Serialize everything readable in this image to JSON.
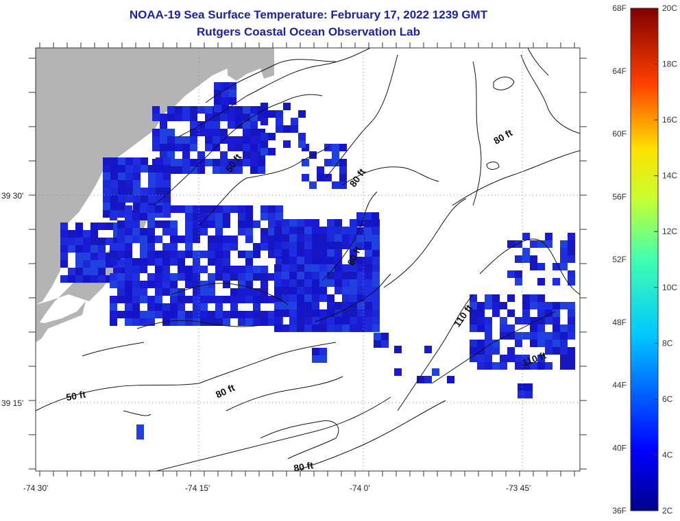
{
  "header": {
    "title": "NOAA-19 Sea Surface Temperature:  February 17, 2022 1239 GMT",
    "subtitle": "Rutgers Coastal Ocean Observation Lab"
  },
  "map": {
    "lat_labels": [
      "39 30'",
      "39 15'"
    ],
    "lon_labels": [
      "-74 30'",
      "-74 15'",
      "-74 0'",
      "-73 45'"
    ],
    "contour_labels": [
      "80 ft",
      "50 ft",
      "80 ft",
      "80 ft",
      "110 ft",
      "110 ft",
      "50 ft",
      "80 ft",
      "80 ft"
    ],
    "colors": {
      "land": "#b4b4b4",
      "sst_dark": "#1414c8",
      "sst_mid": "#1e3cdc",
      "grid": "#888888"
    }
  },
  "colorbar": {
    "fahrenheit_labels": [
      "68F",
      "64F",
      "60F",
      "56F",
      "52F",
      "48F",
      "44F",
      "40F",
      "36F"
    ],
    "celsius_labels": [
      "20C",
      "18C",
      "16C",
      "14C",
      "12C",
      "10C",
      "8C",
      "6C",
      "4C",
      "2C"
    ]
  }
}
